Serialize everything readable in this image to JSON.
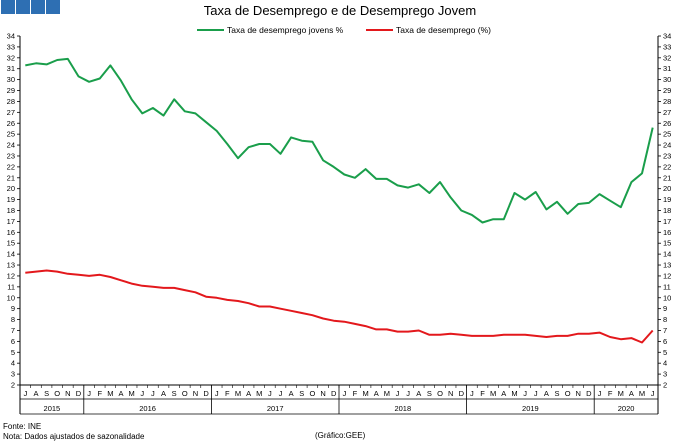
{
  "header": {
    "title": "Taxa de Desemprego e de Desemprego Jovem"
  },
  "footer": {
    "source": "Fonte: INE",
    "note": "Nota: Dados ajustados de sazonalidade",
    "credit": "(Gráfico:GEE)"
  },
  "chart_data": {
    "type": "line",
    "title": "Taxa de Desemprego e de Desemprego Jovem",
    "y_axis": {
      "min": 2,
      "max": 34,
      "step": 1,
      "mirrored_right": true
    },
    "grid": false,
    "legend_position": "top-center",
    "month_labels": [
      "J",
      "A",
      "S",
      "O",
      "N",
      "D",
      "J",
      "F",
      "M",
      "A",
      "M",
      "J",
      "J",
      "A",
      "S",
      "O",
      "N",
      "D",
      "J",
      "F",
      "M",
      "A",
      "M",
      "J",
      "J",
      "A",
      "S",
      "O",
      "N",
      "D",
      "J",
      "F",
      "M",
      "A",
      "M",
      "J",
      "J",
      "A",
      "S",
      "O",
      "N",
      "D",
      "J",
      "F",
      "M",
      "A",
      "M",
      "J",
      "J",
      "A",
      "S",
      "O",
      "N",
      "D",
      "J",
      "F",
      "M",
      "A",
      "M",
      "J"
    ],
    "years": [
      {
        "label": "2015",
        "start": 0,
        "count": 6
      },
      {
        "label": "2016",
        "start": 6,
        "count": 12
      },
      {
        "label": "2017",
        "start": 18,
        "count": 12
      },
      {
        "label": "2018",
        "start": 30,
        "count": 12
      },
      {
        "label": "2019",
        "start": 42,
        "count": 12
      },
      {
        "label": "2020",
        "start": 54,
        "count": 6
      }
    ],
    "series": [
      {
        "name": "Taxa de desemprego jovens %",
        "color": "#1a9e4b",
        "values": [
          31.3,
          31.5,
          31.4,
          31.8,
          31.9,
          30.3,
          29.8,
          30.1,
          31.3,
          29.9,
          28.2,
          26.9,
          27.4,
          26.7,
          28.2,
          27.1,
          26.9,
          26.1,
          25.3,
          24.1,
          22.8,
          23.8,
          24.1,
          24.1,
          23.2,
          24.7,
          24.4,
          24.3,
          22.6,
          22.0,
          21.3,
          21.0,
          21.8,
          20.9,
          20.9,
          20.3,
          20.1,
          20.4,
          19.6,
          20.6,
          19.2,
          18.0,
          17.6,
          16.9,
          17.2,
          17.2,
          19.6,
          19.0,
          19.7,
          18.1,
          18.8,
          17.7,
          18.6,
          18.7,
          19.5,
          18.9,
          18.3,
          20.6,
          21.4,
          25.6
        ]
      },
      {
        "name": "Taxa de desemprego (%)",
        "color": "#e3181c",
        "values": [
          12.3,
          12.4,
          12.5,
          12.4,
          12.2,
          12.1,
          12.0,
          12.1,
          11.9,
          11.6,
          11.3,
          11.1,
          11.0,
          10.9,
          10.9,
          10.7,
          10.5,
          10.1,
          10.0,
          9.8,
          9.7,
          9.5,
          9.2,
          9.2,
          9.0,
          8.8,
          8.6,
          8.4,
          8.1,
          7.9,
          7.8,
          7.6,
          7.4,
          7.1,
          7.1,
          6.9,
          6.9,
          7.0,
          6.6,
          6.6,
          6.7,
          6.6,
          6.5,
          6.5,
          6.5,
          6.6,
          6.6,
          6.6,
          6.5,
          6.4,
          6.5,
          6.5,
          6.7,
          6.7,
          6.8,
          6.4,
          6.2,
          6.3,
          5.9,
          7.0
        ]
      }
    ]
  }
}
